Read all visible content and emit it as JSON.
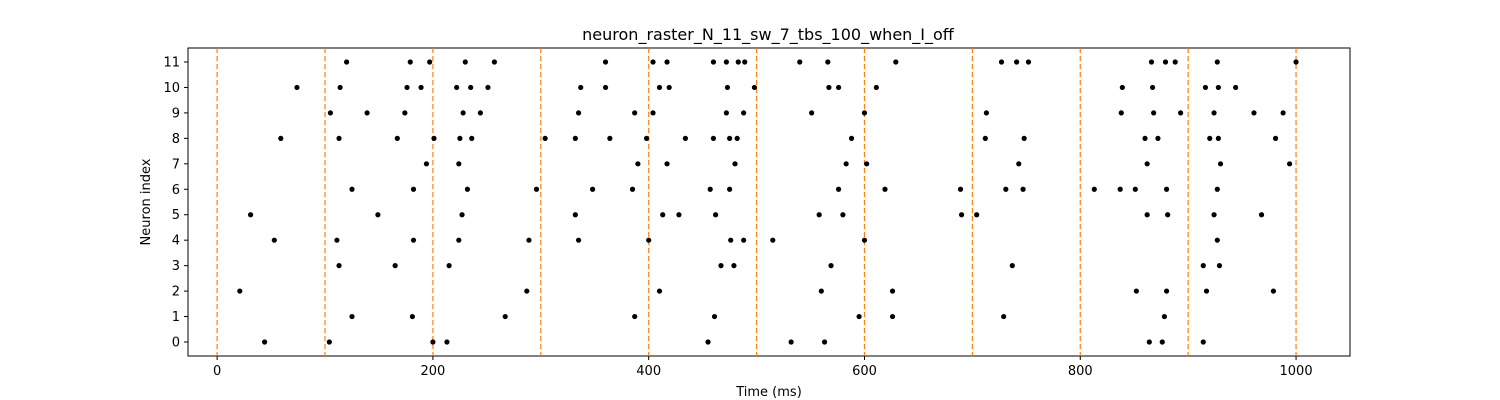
{
  "chart_data": {
    "type": "scatter",
    "title": "neuron_raster_N_11_sw_7_tbs_100_when_I_off",
    "xlabel": "Time (ms)",
    "ylabel": "Neuron index",
    "xlim": [
      -27,
      1050
    ],
    "ylim": [
      -0.55,
      11.55
    ],
    "xticks": [
      0,
      200,
      400,
      600,
      800,
      1000
    ],
    "yticks": [
      0,
      1,
      2,
      3,
      4,
      5,
      6,
      7,
      8,
      9,
      10,
      11
    ],
    "grid": false,
    "marker_color": "#000000",
    "vline_color": "#ff7f0e",
    "vlines": [
      0,
      100,
      200,
      300,
      400,
      500,
      600,
      700,
      800,
      900,
      1000
    ],
    "series": [
      {
        "neuron": 0,
        "x": [
          44,
          104,
          200,
          213,
          455,
          532,
          563,
          864,
          876,
          914
        ]
      },
      {
        "neuron": 1,
        "x": [
          125,
          181,
          267,
          387,
          461,
          595,
          626,
          878,
          729
        ]
      },
      {
        "neuron": 2,
        "x": [
          21,
          287,
          410,
          560,
          626,
          852,
          880,
          917,
          979
        ]
      },
      {
        "neuron": 3,
        "x": [
          113,
          165,
          215,
          467,
          479,
          569,
          737,
          914,
          929
        ]
      },
      {
        "neuron": 4,
        "x": [
          53,
          111,
          182,
          224,
          289,
          335,
          400,
          476,
          488,
          515,
          600,
          927
        ]
      },
      {
        "neuron": 5,
        "x": [
          31,
          149,
          227,
          332,
          413,
          428,
          462,
          558,
          580,
          690,
          704,
          862,
          881,
          924,
          968
        ]
      },
      {
        "neuron": 6,
        "x": [
          125,
          182,
          232,
          296,
          348,
          385,
          457,
          475,
          576,
          619,
          689,
          731,
          747,
          813,
          837,
          851,
          880,
          927
        ]
      },
      {
        "neuron": 7,
        "x": [
          194,
          224,
          390,
          417,
          480,
          583,
          602,
          743,
          862,
          930,
          994
        ]
      },
      {
        "neuron": 8,
        "x": [
          59,
          113,
          167,
          201,
          225,
          236,
          304,
          332,
          364,
          398,
          434,
          460,
          475,
          482,
          588,
          712,
          748,
          860,
          872,
          920,
          928,
          981
        ]
      },
      {
        "neuron": 9,
        "x": [
          105,
          139,
          174,
          228,
          244,
          335,
          387,
          404,
          472,
          488,
          551,
          600,
          713,
          838,
          868,
          893,
          924,
          961,
          988
        ]
      },
      {
        "neuron": 10,
        "x": [
          74,
          114,
          176,
          189,
          222,
          235,
          251,
          337,
          360,
          410,
          419,
          473,
          498,
          567,
          576,
          611,
          839,
          867,
          916,
          928,
          944
        ]
      },
      {
        "neuron": 11,
        "x": [
          120,
          179,
          197,
          230,
          257,
          360,
          404,
          417,
          460,
          472,
          483,
          489,
          540,
          566,
          629,
          727,
          741,
          752,
          866,
          879,
          888,
          927,
          1000
        ]
      }
    ]
  }
}
